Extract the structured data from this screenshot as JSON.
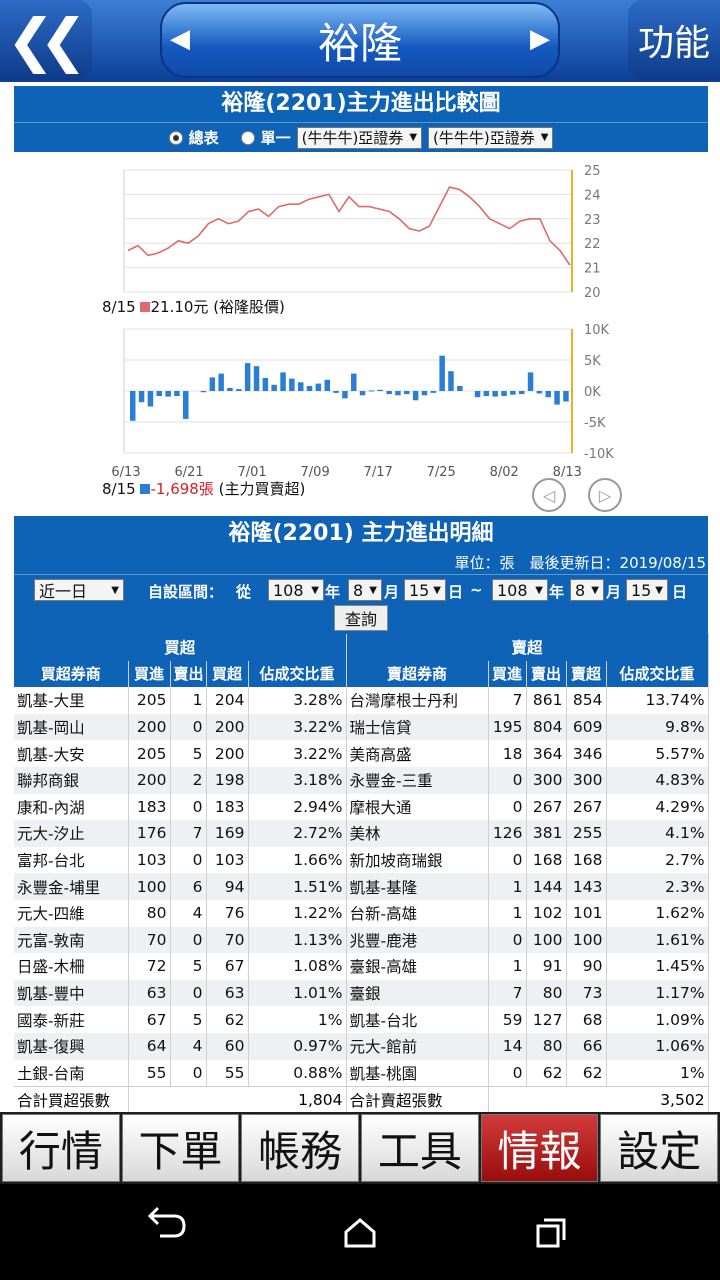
{
  "header": {
    "title": "裕隆",
    "back_icon": "double-chevron-left-icon",
    "func_label": "功能"
  },
  "chart_section": {
    "title": "裕隆(2201)主力進出比較圖",
    "radio_all": "總表",
    "radio_single": "單一",
    "broker_select1": "(牛牛牛)亞證券",
    "broker_select2": "(牛牛牛)亞證券",
    "price_legend_date": "8/15",
    "price_legend_value": "21.10元",
    "price_legend_name": "(裕隆股價)",
    "bar_legend_date": "8/15",
    "bar_legend_value": "-1,698張",
    "bar_legend_name": "(主力買賣超)"
  },
  "chart_data": [
    {
      "type": "line",
      "series": [
        {
          "name": "裕隆股價",
          "color": "#e06a6a",
          "values": [
            21.7,
            21.9,
            21.5,
            21.6,
            21.8,
            22.1,
            22.0,
            22.3,
            22.8,
            23.0,
            22.8,
            22.9,
            23.3,
            23.4,
            23.1,
            23.5,
            23.6,
            23.6,
            23.8,
            23.9,
            24.0,
            23.3,
            23.9,
            23.5,
            23.5,
            23.4,
            23.3,
            23.0,
            22.6,
            22.5,
            22.7,
            23.5,
            24.3,
            24.2,
            23.9,
            23.5,
            23.0,
            22.8,
            22.6,
            22.9,
            23.0,
            23.0,
            22.1,
            21.7,
            21.1
          ]
        }
      ],
      "ylim": [
        20,
        25
      ],
      "yticks": [
        "25",
        "24",
        "23",
        "22",
        "21",
        "20"
      ]
    },
    {
      "type": "bar",
      "series": [
        {
          "name": "主力買賣超",
          "color": "#2a7fd4",
          "values": [
            -4800,
            -1800,
            -2500,
            -800,
            -900,
            -800,
            -4500,
            0,
            -200,
            2200,
            2800,
            500,
            300,
            4500,
            4000,
            2100,
            1000,
            3000,
            2000,
            1400,
            800,
            1200,
            1800,
            -300,
            -1200,
            2800,
            -700,
            100,
            200,
            -500,
            -700,
            -500,
            -1500,
            -700,
            -300,
            5700,
            3200,
            800,
            0,
            -1000,
            -800,
            -900,
            -800,
            -600,
            -500,
            3000,
            -400,
            -1000,
            -2200,
            -1698
          ]
        }
      ],
      "ylim": [
        -10000,
        10000
      ],
      "yticks": [
        "10K",
        "5K",
        "0K",
        "-5K",
        "-10K"
      ],
      "xticks": [
        "6/13",
        "6/21",
        "7/01",
        "7/09",
        "7/17",
        "7/25",
        "8/02",
        "8/13"
      ]
    }
  ],
  "detail": {
    "title": "裕隆(2201) 主力進出明細",
    "unit_line": "單位：張　最後更新日：2019/08/15",
    "range_select": "近一日",
    "custom_label": "自設區間：",
    "from_label": "從",
    "y1": "108",
    "m1": "8",
    "d1": "15",
    "y2": "108",
    "m2": "8",
    "d2": "15",
    "year_unit": "年",
    "month_unit": "月",
    "day_unit": "日",
    "tilde": "~",
    "query_label": "查詢"
  },
  "table": {
    "buy_group": "買超",
    "sell_group": "賣超",
    "buy_headers": [
      "買超券商",
      "買進",
      "賣出",
      "買超",
      "佔成交比重"
    ],
    "sell_headers": [
      "賣超券商",
      "買進",
      "賣出",
      "賣超",
      "佔成交比重"
    ],
    "rows": [
      [
        "凱基-大里",
        "205",
        "1",
        "204",
        "3.28%",
        "台灣摩根士丹利",
        "7",
        "861",
        "854",
        "13.74%"
      ],
      [
        "凱基-岡山",
        "200",
        "0",
        "200",
        "3.22%",
        "瑞士信貸",
        "195",
        "804",
        "609",
        "9.8%"
      ],
      [
        "凱基-大安",
        "205",
        "5",
        "200",
        "3.22%",
        "美商高盛",
        "18",
        "364",
        "346",
        "5.57%"
      ],
      [
        "聯邦商銀",
        "200",
        "2",
        "198",
        "3.18%",
        "永豐金-三重",
        "0",
        "300",
        "300",
        "4.83%"
      ],
      [
        "康和-內湖",
        "183",
        "0",
        "183",
        "2.94%",
        "摩根大通",
        "0",
        "267",
        "267",
        "4.29%"
      ],
      [
        "元大-汐止",
        "176",
        "7",
        "169",
        "2.72%",
        "美林",
        "126",
        "381",
        "255",
        "4.1%"
      ],
      [
        "富邦-台北",
        "103",
        "0",
        "103",
        "1.66%",
        "新加坡商瑞銀",
        "0",
        "168",
        "168",
        "2.7%"
      ],
      [
        "永豐金-埔里",
        "100",
        "6",
        "94",
        "1.51%",
        "凱基-基隆",
        "1",
        "144",
        "143",
        "2.3%"
      ],
      [
        "元大-四維",
        "80",
        "4",
        "76",
        "1.22%",
        "台新-高雄",
        "1",
        "102",
        "101",
        "1.62%"
      ],
      [
        "元富-敦南",
        "70",
        "0",
        "70",
        "1.13%",
        "兆豐-鹿港",
        "0",
        "100",
        "100",
        "1.61%"
      ],
      [
        "日盛-木柵",
        "72",
        "5",
        "67",
        "1.08%",
        "臺銀-高雄",
        "1",
        "91",
        "90",
        "1.45%"
      ],
      [
        "凱基-豐中",
        "63",
        "0",
        "63",
        "1.01%",
        "臺銀",
        "7",
        "80",
        "73",
        "1.17%"
      ],
      [
        "國泰-新莊",
        "67",
        "5",
        "62",
        "1%",
        "凱基-台北",
        "59",
        "127",
        "68",
        "1.09%"
      ],
      [
        "凱基-復興",
        "64",
        "4",
        "60",
        "0.97%",
        "元大-館前",
        "14",
        "80",
        "66",
        "1.06%"
      ],
      [
        "土銀-台南",
        "55",
        "0",
        "55",
        "0.88%",
        "凱基-桃園",
        "0",
        "62",
        "62",
        "1%"
      ]
    ],
    "buy_total_label": "合計買超張數",
    "buy_total": "1,804",
    "sell_total_label": "合計賣超張數",
    "sell_total": "3,502"
  },
  "tabs": [
    "行情",
    "下單",
    "帳務",
    "工具",
    "情報",
    "設定"
  ],
  "active_tab": 4,
  "nav": {
    "back": "back-icon",
    "home": "home-icon",
    "recents": "recents-icon"
  }
}
